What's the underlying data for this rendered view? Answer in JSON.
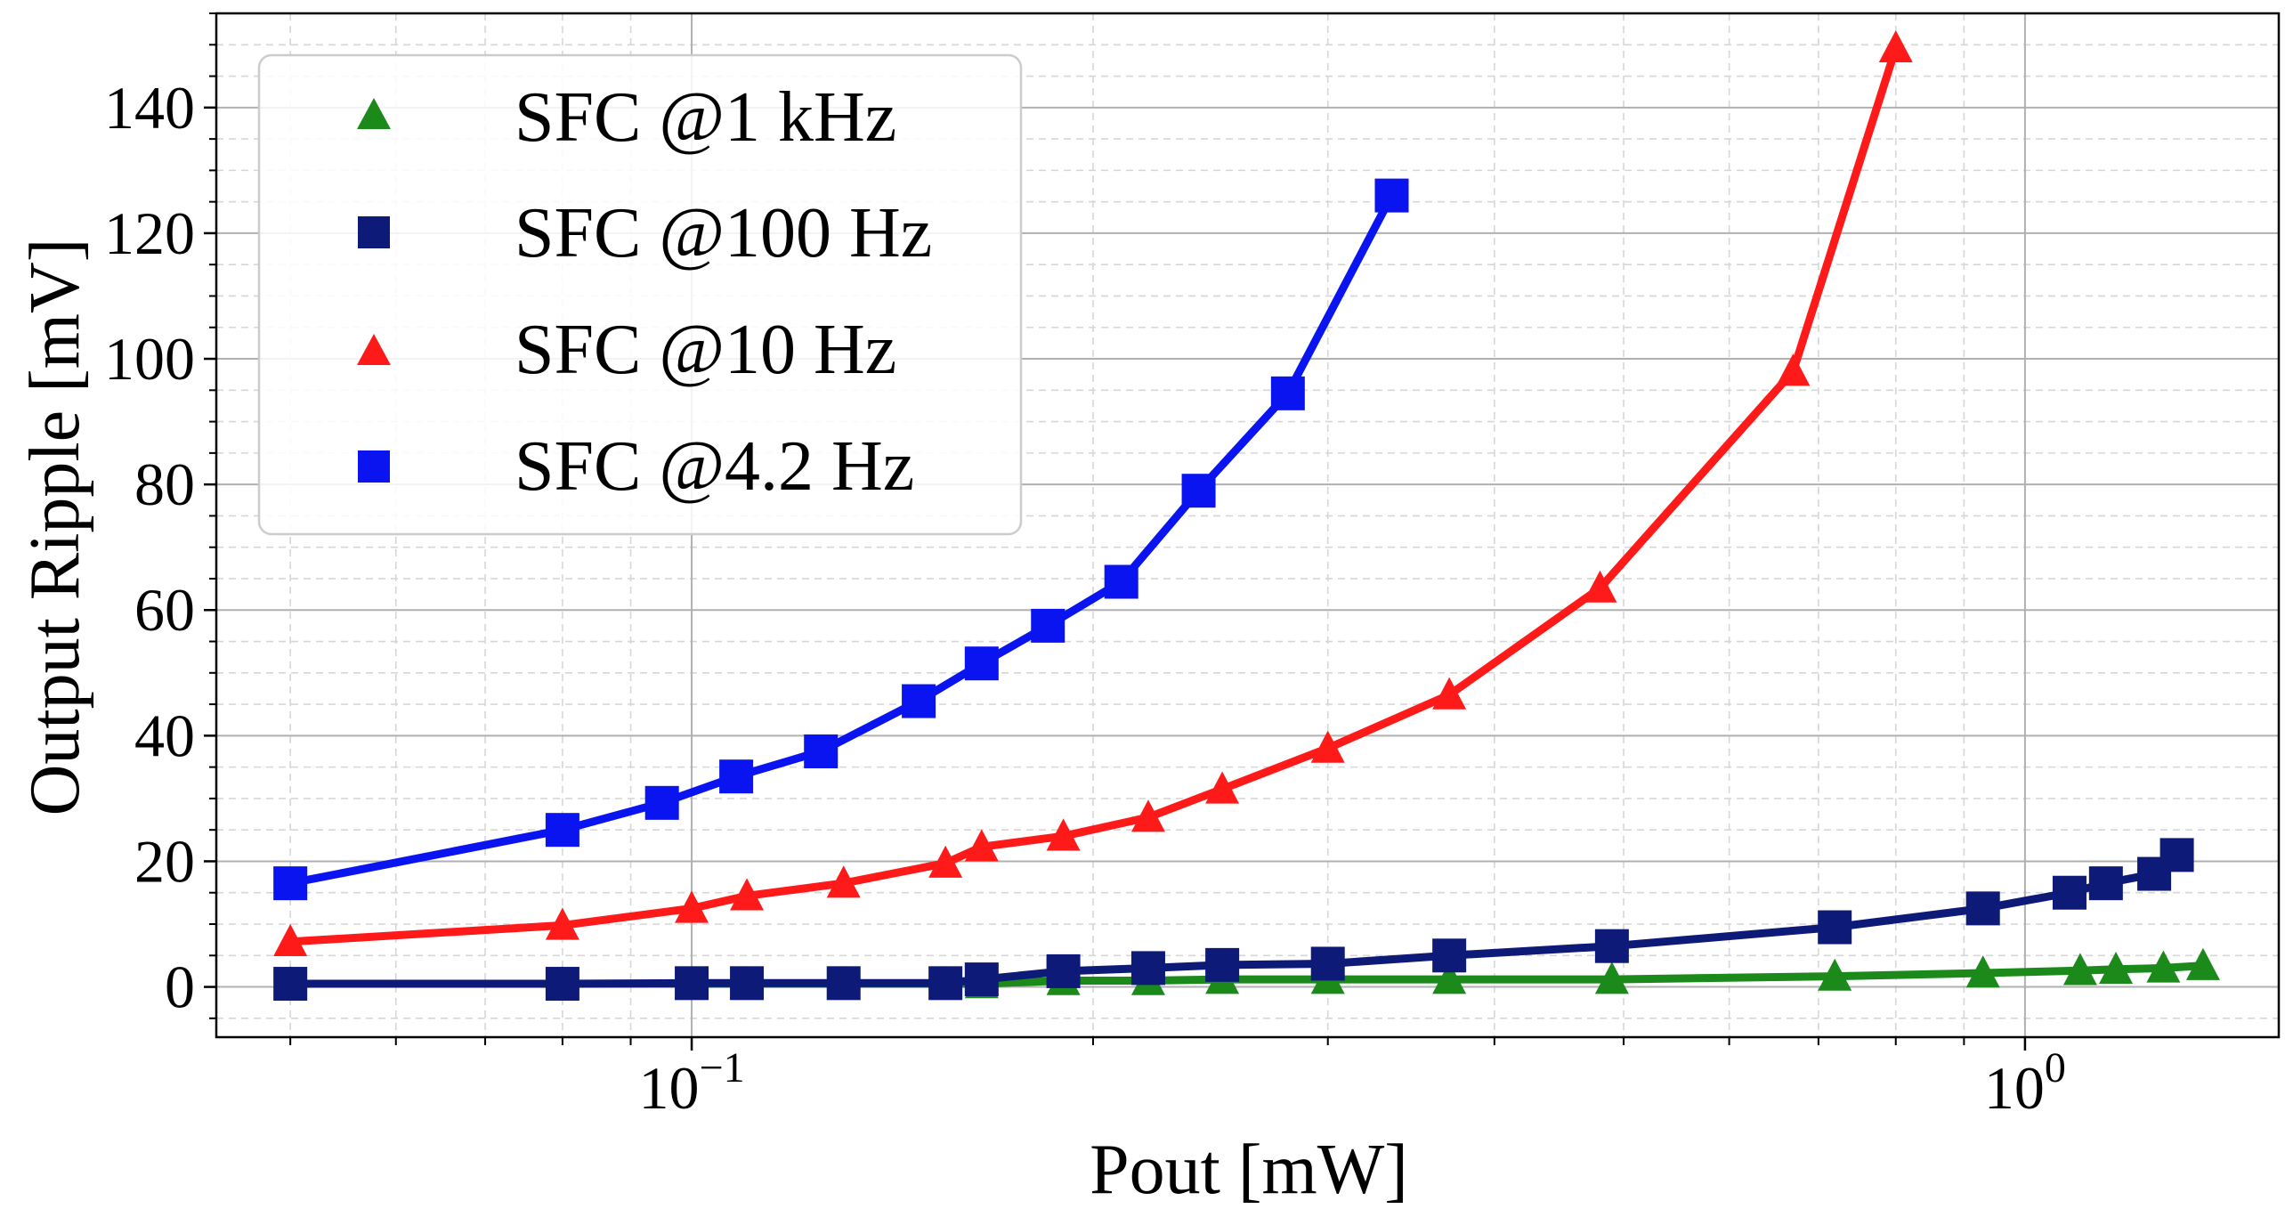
{
  "chart_data": {
    "type": "line",
    "xscale": "log",
    "xlabel": "Pout [mW]",
    "ylabel": "Output Ripple [mV]",
    "xlim": [
      0.044,
      1.55
    ],
    "ylim": [
      -8,
      155
    ],
    "xticks": [
      {
        "value": 0.1,
        "base": "10",
        "exp": "−1"
      },
      {
        "value": 1,
        "base": "10",
        "exp": "0"
      }
    ],
    "yticks": [
      0,
      20,
      40,
      60,
      80,
      100,
      120,
      140
    ],
    "grid": true,
    "legend_position": "upper-left",
    "series": [
      {
        "name": "SFC @1 kHz",
        "color": "#1b8a1b",
        "marker": "triangle",
        "x": [
          0.05,
          0.08,
          0.1,
          0.11,
          0.13,
          0.155,
          0.165,
          0.19,
          0.22,
          0.25,
          0.3,
          0.37,
          0.49,
          0.72,
          0.93,
          1.1,
          1.17,
          1.27,
          1.36
        ],
        "y": [
          0.5,
          0.5,
          0.5,
          0.5,
          0.5,
          0.5,
          0.5,
          1.0,
          1.0,
          1.2,
          1.2,
          1.2,
          1.2,
          1.7,
          2.2,
          2.6,
          2.8,
          3.0,
          3.4
        ]
      },
      {
        "name": "SFC @100 Hz",
        "color": "#0d1a78",
        "marker": "square",
        "x": [
          0.05,
          0.08,
          0.1,
          0.11,
          0.13,
          0.155,
          0.165,
          0.19,
          0.22,
          0.25,
          0.3,
          0.37,
          0.49,
          0.72,
          0.93,
          1.08,
          1.15,
          1.25,
          1.3
        ],
        "y": [
          0.5,
          0.5,
          0.6,
          0.6,
          0.6,
          0.6,
          1.2,
          2.5,
          3.0,
          3.5,
          3.7,
          5.0,
          6.5,
          9.5,
          12.5,
          15.0,
          16.5,
          18.0,
          21.0
        ]
      },
      {
        "name": "SFC @10 Hz",
        "color": "#ff1a1a",
        "marker": "triangle",
        "x": [
          0.05,
          0.08,
          0.1,
          0.11,
          0.13,
          0.155,
          0.165,
          0.19,
          0.22,
          0.25,
          0.3,
          0.37,
          0.48,
          0.67,
          0.8
        ],
        "y": [
          7.2,
          9.8,
          12.5,
          14.5,
          16.5,
          19.7,
          22.3,
          24.0,
          27.0,
          31.5,
          38.0,
          46.5,
          63.5,
          98.0,
          149.5
        ]
      },
      {
        "name": "SFC @4.2 Hz",
        "color": "#0a14f0",
        "marker": "square",
        "x": [
          0.05,
          0.08,
          0.095,
          0.108,
          0.125,
          0.148,
          0.165,
          0.185,
          0.21,
          0.24,
          0.28,
          0.335
        ],
        "y": [
          16.5,
          25.0,
          29.3,
          33.5,
          37.5,
          45.5,
          51.5,
          57.5,
          64.5,
          79.0,
          94.5,
          126.0
        ]
      }
    ]
  }
}
